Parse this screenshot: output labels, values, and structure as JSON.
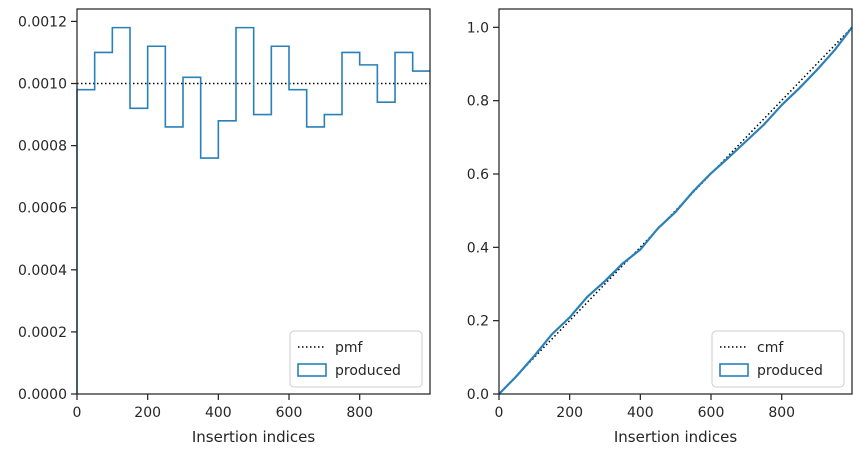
{
  "colors": {
    "series": "#2a80b9",
    "reference": "#000000",
    "axes": "#262626",
    "legend_border": "#cccccc"
  },
  "chart_data": [
    {
      "type": "step",
      "xlabel": "Insertion indices",
      "ylabel": "",
      "xlim": [
        0,
        999
      ],
      "ylim": [
        0,
        0.00124
      ],
      "xticks": [
        0,
        200,
        400,
        600,
        800
      ],
      "xtick_labels": [
        "0",
        "200",
        "400",
        "600",
        "800"
      ],
      "yticks": [
        0,
        0.0002,
        0.0004,
        0.0006,
        0.0008,
        0.001,
        0.0012
      ],
      "ytick_labels": [
        "0.0000",
        "0.0002",
        "0.0004",
        "0.0006",
        "0.0008",
        "0.0010",
        "0.0012"
      ],
      "legend_position": "lower-right",
      "grid": false,
      "series": [
        {
          "name": "pmf",
          "style": "dotted-line",
          "x": [
            0,
            999
          ],
          "values": [
            0.001,
            0.001
          ]
        },
        {
          "name": "produced",
          "style": "step-histogram",
          "bin_edges": [
            0,
            50,
            100,
            150,
            200,
            250,
            300,
            350,
            400,
            450,
            500,
            550,
            600,
            650,
            700,
            750,
            800,
            850,
            900,
            950,
            999
          ],
          "values": [
            0.00098,
            0.0011,
            0.00118,
            0.00092,
            0.00112,
            0.00086,
            0.00102,
            0.00076,
            0.00088,
            0.00118,
            0.0009,
            0.00112,
            0.00098,
            0.00086,
            0.0009,
            0.0011,
            0.00106,
            0.00094,
            0.0011,
            0.00104
          ]
        }
      ]
    },
    {
      "type": "line",
      "xlabel": "Insertion indices",
      "ylabel": "",
      "xlim": [
        0,
        999
      ],
      "ylim": [
        0,
        1.05
      ],
      "xticks": [
        0,
        200,
        400,
        600,
        800
      ],
      "xtick_labels": [
        "0",
        "200",
        "400",
        "600",
        "800"
      ],
      "yticks": [
        0,
        0.2,
        0.4,
        0.6,
        0.8,
        1.0
      ],
      "ytick_labels": [
        "0.0",
        "0.2",
        "0.4",
        "0.6",
        "0.8",
        "1.0"
      ],
      "legend_position": "lower-right",
      "grid": false,
      "series": [
        {
          "name": "cmf",
          "style": "dotted-line",
          "x": [
            0,
            999
          ],
          "values": [
            0,
            1.0
          ]
        },
        {
          "name": "produced",
          "style": "line",
          "x": [
            0,
            50,
            100,
            150,
            200,
            250,
            300,
            350,
            400,
            450,
            500,
            550,
            600,
            650,
            700,
            750,
            800,
            850,
            900,
            950,
            999
          ],
          "values": [
            0,
            0.049,
            0.104,
            0.163,
            0.209,
            0.265,
            0.308,
            0.356,
            0.394,
            0.452,
            0.497,
            0.553,
            0.602,
            0.645,
            0.69,
            0.735,
            0.788,
            0.834,
            0.884,
            0.938,
            1.0
          ]
        }
      ]
    }
  ]
}
